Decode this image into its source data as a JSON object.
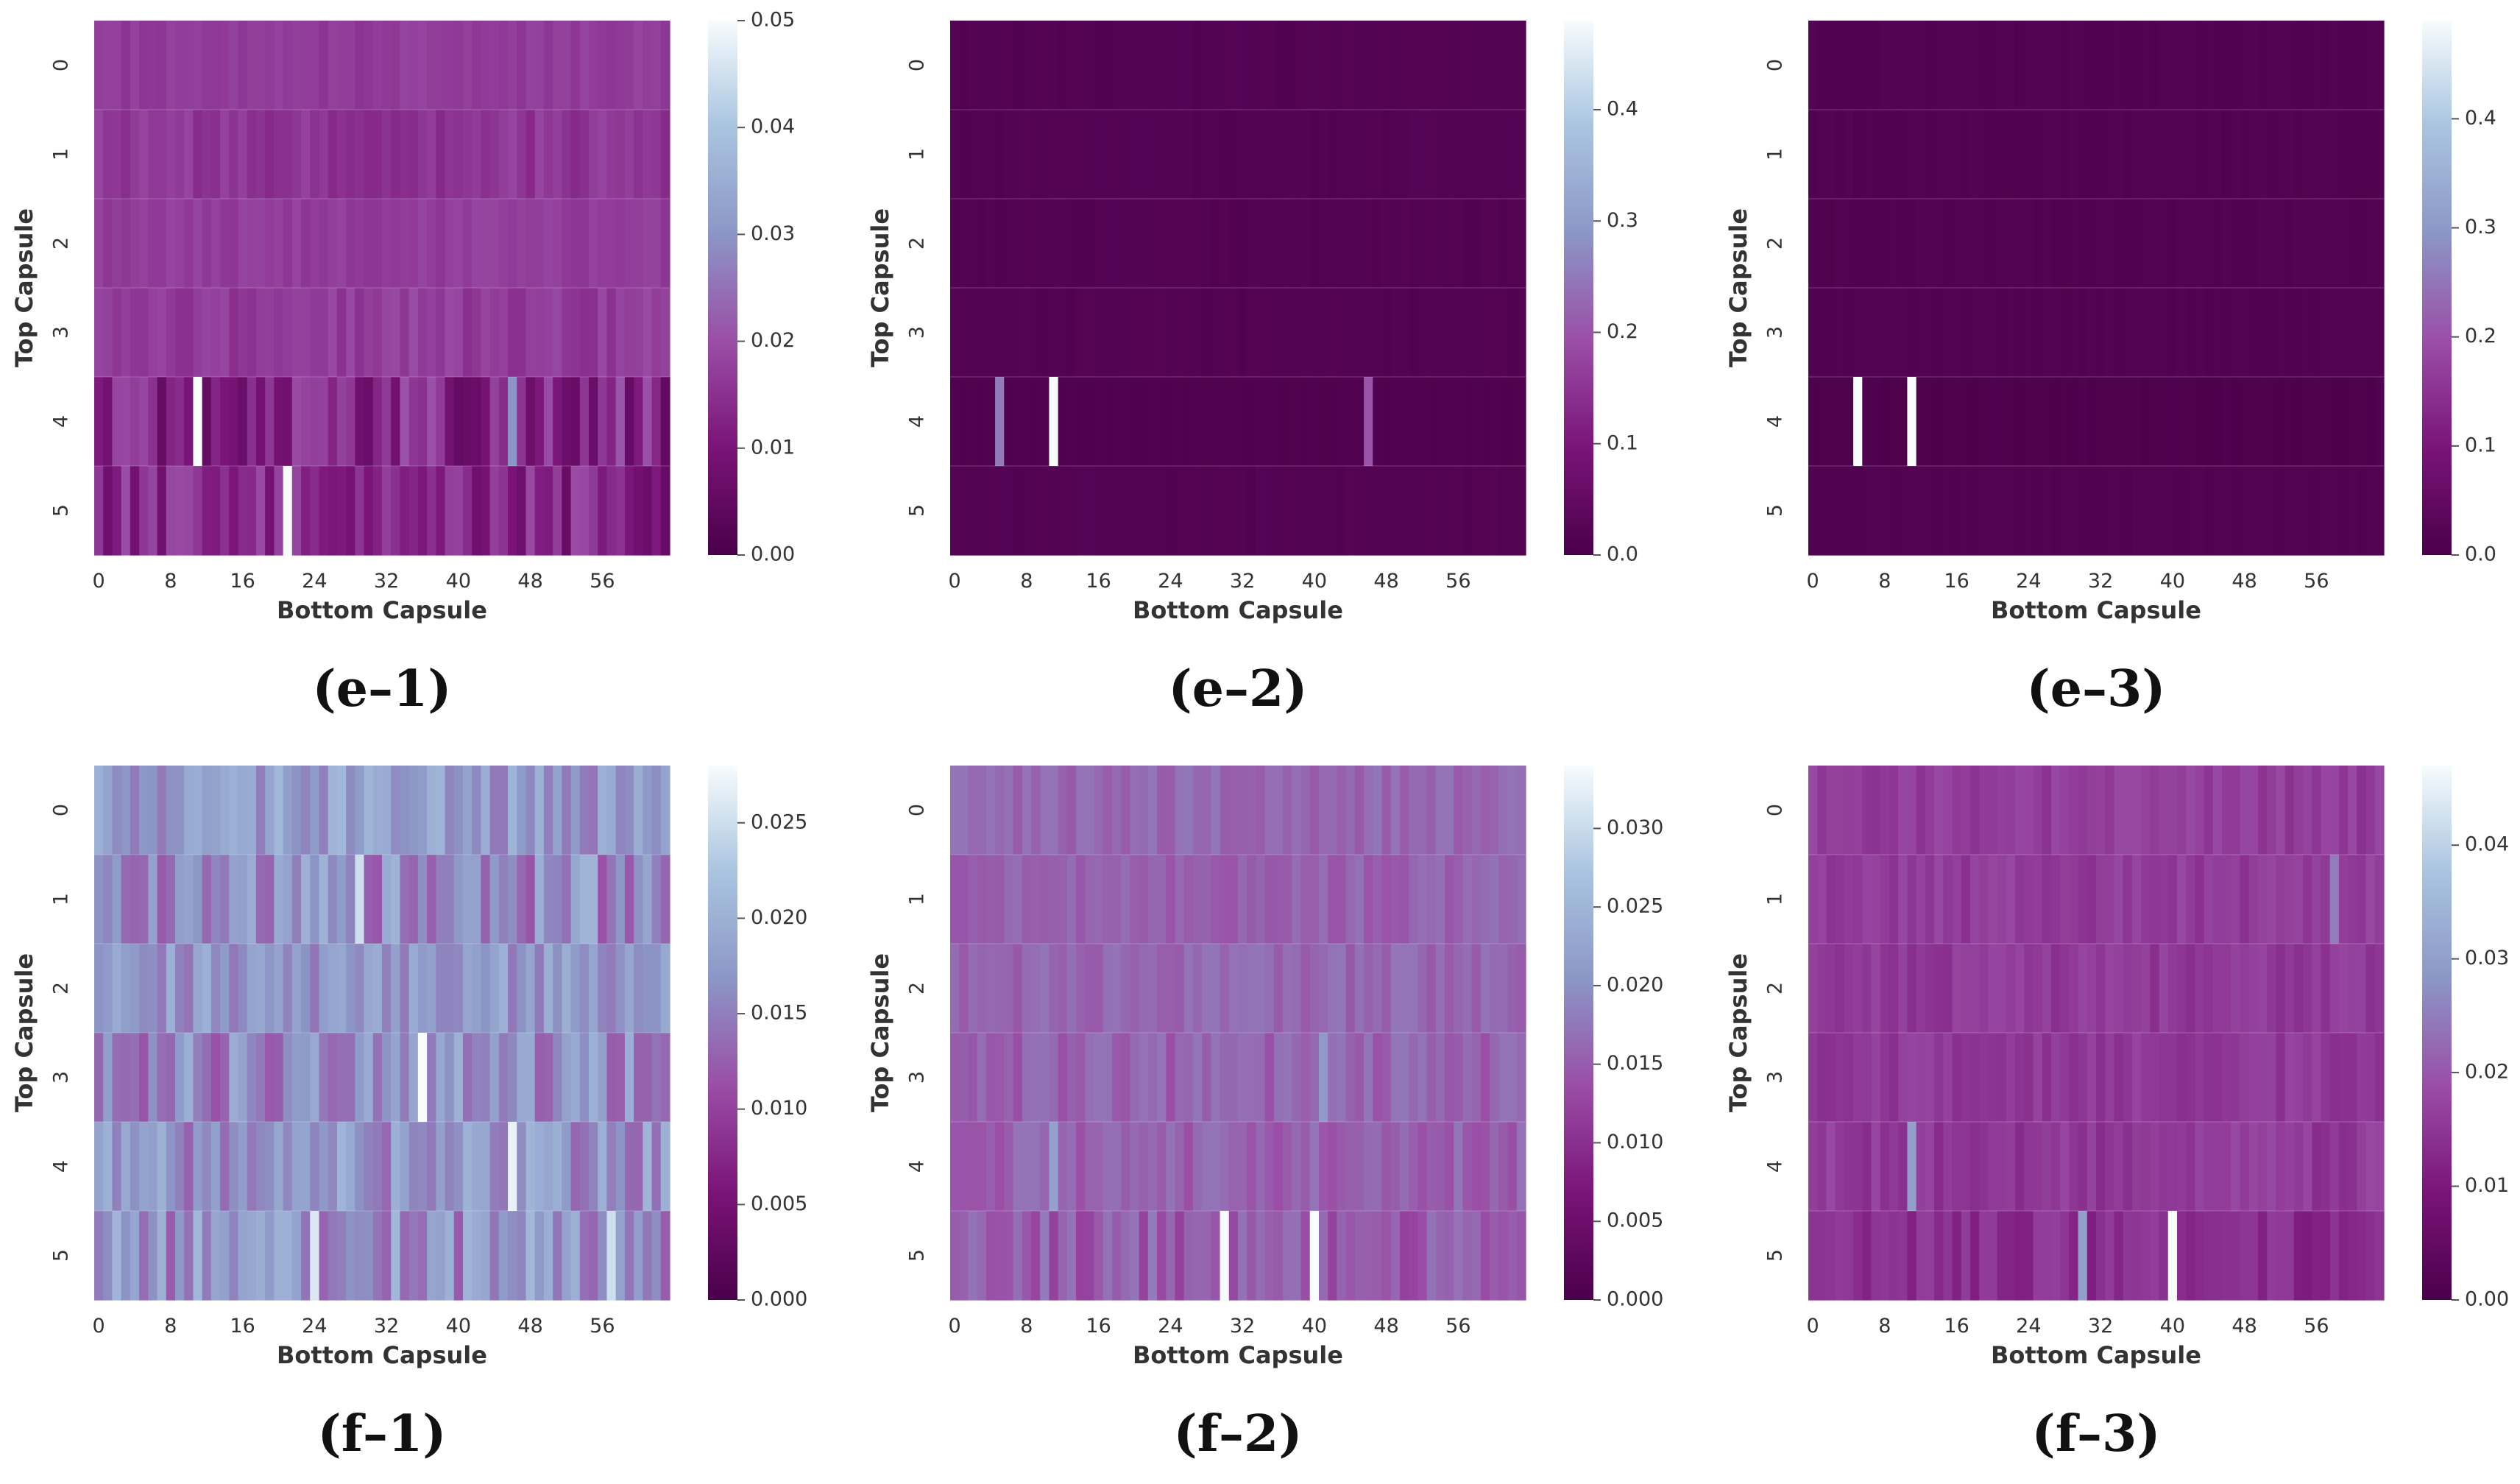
{
  "colormap": [
    "#4a004a",
    "#7a1478",
    "#9a4ea6",
    "#8c96c6",
    "#a9c4e0",
    "#f7fcfd"
  ],
  "chart_data": [
    {
      "type": "heatmap",
      "id": "e-1",
      "caption": "(e–1)",
      "xlabel": "Bottom Capsule",
      "ylabel": "Top Capsule",
      "rows": 6,
      "cols": 64,
      "xticks": [
        "0",
        "8",
        "16",
        "24",
        "32",
        "40",
        "48",
        "56"
      ],
      "yticks": [
        "0",
        "1",
        "2",
        "3",
        "4",
        "5"
      ],
      "vmin": 0,
      "vmax": 0.05,
      "colorbar_ticks": [
        "0.00",
        "0.01",
        "0.02",
        "0.03",
        "0.04",
        "0.05"
      ],
      "base": [
        0.017,
        0.016,
        0.017,
        0.017,
        0.013,
        0.013
      ],
      "noise": [
        0.0015,
        0.0025,
        0.0015,
        0.0025,
        0.008,
        0.007
      ],
      "highlights": [
        {
          "row": 4,
          "col": 11,
          "value": 0.05
        },
        {
          "row": 5,
          "col": 21,
          "value": 0.05
        },
        {
          "row": 4,
          "col": 46,
          "value": 0.03
        }
      ]
    },
    {
      "type": "heatmap",
      "id": "e-2",
      "caption": "(e–2)",
      "xlabel": "Bottom Capsule",
      "ylabel": "Top Capsule",
      "rows": 6,
      "cols": 64,
      "xticks": [
        "0",
        "8",
        "16",
        "24",
        "32",
        "40",
        "48",
        "56"
      ],
      "yticks": [
        "0",
        "1",
        "2",
        "3",
        "4",
        "5"
      ],
      "vmin": 0,
      "vmax": 0.48,
      "colorbar_ticks": [
        "0.0",
        "0.1",
        "0.2",
        "0.3",
        "0.4"
      ],
      "base": [
        0.018,
        0.018,
        0.018,
        0.018,
        0.012,
        0.018
      ],
      "noise": [
        0.004,
        0.004,
        0.004,
        0.004,
        0.003,
        0.004
      ],
      "highlights": [
        {
          "row": 4,
          "col": 5,
          "value": 0.25
        },
        {
          "row": 4,
          "col": 11,
          "value": 0.48
        },
        {
          "row": 4,
          "col": 46,
          "value": 0.2
        }
      ]
    },
    {
      "type": "heatmap",
      "id": "e-3",
      "caption": "(e–3)",
      "xlabel": "Bottom Capsule",
      "ylabel": "Top Capsule",
      "rows": 6,
      "cols": 64,
      "xticks": [
        "0",
        "8",
        "16",
        "24",
        "32",
        "40",
        "48",
        "56"
      ],
      "yticks": [
        "0",
        "1",
        "2",
        "3",
        "4",
        "5"
      ],
      "vmin": 0,
      "vmax": 0.49,
      "colorbar_ticks": [
        "0.0",
        "0.1",
        "0.2",
        "0.3",
        "0.4"
      ],
      "base": [
        0.016,
        0.016,
        0.016,
        0.016,
        0.008,
        0.016
      ],
      "noise": [
        0.003,
        0.003,
        0.003,
        0.003,
        0.002,
        0.003
      ],
      "highlights": [
        {
          "row": 4,
          "col": 5,
          "value": 0.49
        },
        {
          "row": 4,
          "col": 11,
          "value": 0.49
        }
      ]
    },
    {
      "type": "heatmap",
      "id": "f-1",
      "caption": "(f–1)",
      "xlabel": "Bottom Capsule",
      "ylabel": "Top Capsule",
      "rows": 6,
      "cols": 64,
      "xticks": [
        "0",
        "8",
        "16",
        "24",
        "32",
        "40",
        "48",
        "56"
      ],
      "yticks": [
        "0",
        "1",
        "2",
        "3",
        "4",
        "5"
      ],
      "vmin": 0,
      "vmax": 0.028,
      "colorbar_ticks": [
        "0.000",
        "0.005",
        "0.010",
        "0.015",
        "0.020",
        "0.025"
      ],
      "base": [
        0.0175,
        0.016,
        0.017,
        0.016,
        0.0165,
        0.0165
      ],
      "noise": [
        0.0035,
        0.0045,
        0.003,
        0.0045,
        0.004,
        0.0045
      ],
      "highlights": [
        {
          "row": 3,
          "col": 36,
          "value": 0.028
        },
        {
          "row": 4,
          "col": 46,
          "value": 0.027
        },
        {
          "row": 1,
          "col": 29,
          "value": 0.025
        },
        {
          "row": 5,
          "col": 24,
          "value": 0.026
        },
        {
          "row": 5,
          "col": 57,
          "value": 0.025
        }
      ]
    },
    {
      "type": "heatmap",
      "id": "f-2",
      "caption": "(f–2)",
      "xlabel": "Bottom Capsule",
      "ylabel": "Top Capsule",
      "rows": 6,
      "cols": 64,
      "xticks": [
        "0",
        "8",
        "16",
        "24",
        "32",
        "40",
        "48",
        "56"
      ],
      "yticks": [
        "0",
        "1",
        "2",
        "3",
        "4",
        "5"
      ],
      "vmin": 0,
      "vmax": 0.034,
      "colorbar_ticks": [
        "0.000",
        "0.005",
        "0.010",
        "0.015",
        "0.020",
        "0.025",
        "0.030"
      ],
      "base": [
        0.016,
        0.0155,
        0.016,
        0.0155,
        0.0155,
        0.015
      ],
      "noise": [
        0.0015,
        0.0015,
        0.0015,
        0.002,
        0.002,
        0.003
      ],
      "highlights": [
        {
          "row": 5,
          "col": 30,
          "value": 0.034
        },
        {
          "row": 5,
          "col": 40,
          "value": 0.034
        },
        {
          "row": 4,
          "col": 11,
          "value": 0.022
        },
        {
          "row": 3,
          "col": 41,
          "value": 0.021
        }
      ]
    },
    {
      "type": "heatmap",
      "id": "f-3",
      "caption": "(f–3)",
      "xlabel": "Bottom Capsule",
      "ylabel": "Top Capsule",
      "rows": 6,
      "cols": 64,
      "xticks": [
        "0",
        "8",
        "16",
        "24",
        "32",
        "40",
        "48",
        "56"
      ],
      "yticks": [
        "0",
        "1",
        "2",
        "3",
        "4",
        "5"
      ],
      "vmin": 0,
      "vmax": 0.047,
      "colorbar_ticks": [
        "0.00",
        "0.01",
        "0.02",
        "0.03",
        "0.04"
      ],
      "base": [
        0.016,
        0.016,
        0.0155,
        0.0155,
        0.0155,
        0.0135
      ],
      "noise": [
        0.002,
        0.002,
        0.002,
        0.002,
        0.0025,
        0.003
      ],
      "highlights": [
        {
          "row": 5,
          "col": 40,
          "value": 0.047
        },
        {
          "row": 5,
          "col": 30,
          "value": 0.03
        },
        {
          "row": 4,
          "col": 11,
          "value": 0.03
        },
        {
          "row": 1,
          "col": 58,
          "value": 0.025
        }
      ]
    }
  ]
}
